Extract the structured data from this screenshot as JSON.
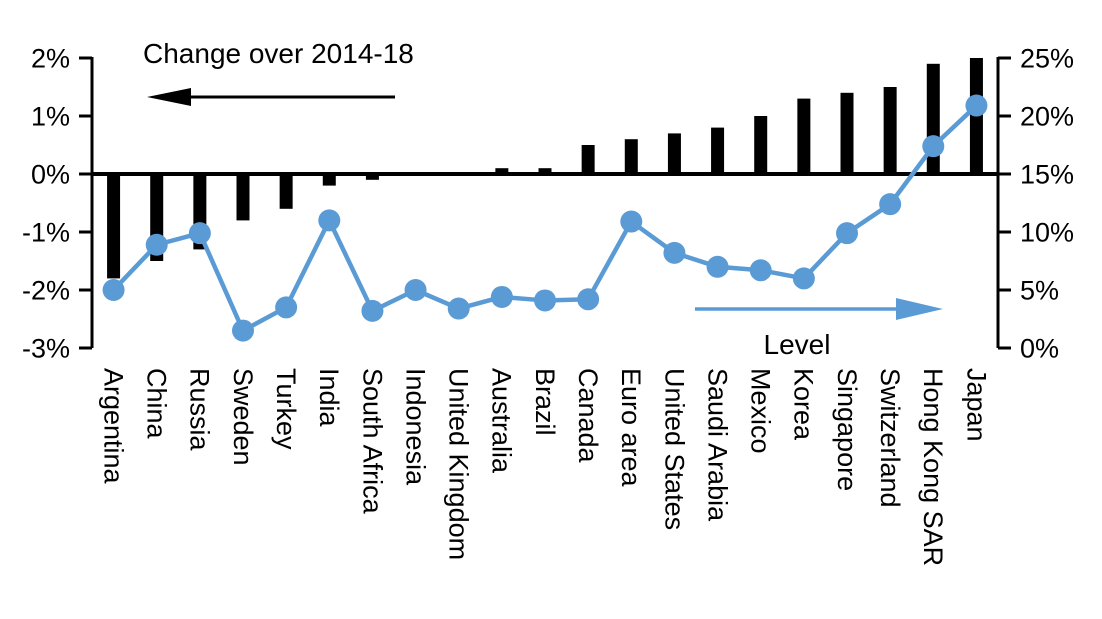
{
  "chart_data": {
    "type": "bar+line combo",
    "title": "",
    "categories": [
      "Argentina",
      "China",
      "Russia",
      "Sweden",
      "Turkey",
      "India",
      "South Africa",
      "Indonesia",
      "United Kingdom",
      "Australia",
      "Brazil",
      "Canada",
      "Euro area",
      "United States",
      "Saudi Arabia",
      "Mexico",
      "Korea",
      "Singapore",
      "Switzerland",
      "Hong Kong SAR",
      "Japan"
    ],
    "series": [
      {
        "name": "Change over 2014-18",
        "type": "bar",
        "axis": "left",
        "color": "#000000",
        "values": [
          -1.8,
          -1.5,
          -1.3,
          -0.8,
          -0.6,
          -0.2,
          -0.1,
          0.0,
          0.0,
          0.1,
          0.1,
          0.5,
          0.6,
          0.7,
          0.8,
          1.0,
          1.3,
          1.4,
          1.5,
          1.9,
          2.0
        ]
      },
      {
        "name": "Level",
        "type": "line",
        "axis": "right",
        "color": "#5B9BD5",
        "values": [
          5.0,
          8.9,
          9.9,
          1.5,
          3.5,
          11.0,
          3.2,
          5.0,
          3.4,
          4.4,
          4.1,
          4.2,
          10.9,
          8.2,
          7.0,
          6.7,
          6.0,
          9.9,
          12.4,
          17.4,
          20.9
        ]
      }
    ],
    "left_axis": {
      "min": -3,
      "max": 2,
      "ticks": [
        {
          "label": "2%",
          "value": 2
        },
        {
          "label": "1%",
          "value": 1
        },
        {
          "label": "0%",
          "value": 0
        },
        {
          "label": "-1%",
          "value": -1
        },
        {
          "label": "-2%",
          "value": -2
        },
        {
          "label": "-3%",
          "value": -3
        }
      ]
    },
    "right_axis": {
      "min": 0,
      "max": 25,
      "ticks": [
        {
          "label": "25%",
          "value": 25
        },
        {
          "label": "20%",
          "value": 20
        },
        {
          "label": "15%",
          "value": 15
        },
        {
          "label": "10%",
          "value": 10
        },
        {
          "label": "5%",
          "value": 5
        },
        {
          "label": "0%",
          "value": 0
        }
      ]
    },
    "annotations": [
      {
        "id": "bar-series-label",
        "text": "Change over 2014-18",
        "arrow_direction": "left",
        "color": "#000000"
      },
      {
        "id": "line-series-label",
        "text": "Level",
        "arrow_direction": "right",
        "color": "#5B9BD5"
      }
    ],
    "layout_hints": {
      "grid": false,
      "legend_position": "annotations-inside-plot",
      "zero_line_left_equals_right_value": 15
    }
  }
}
